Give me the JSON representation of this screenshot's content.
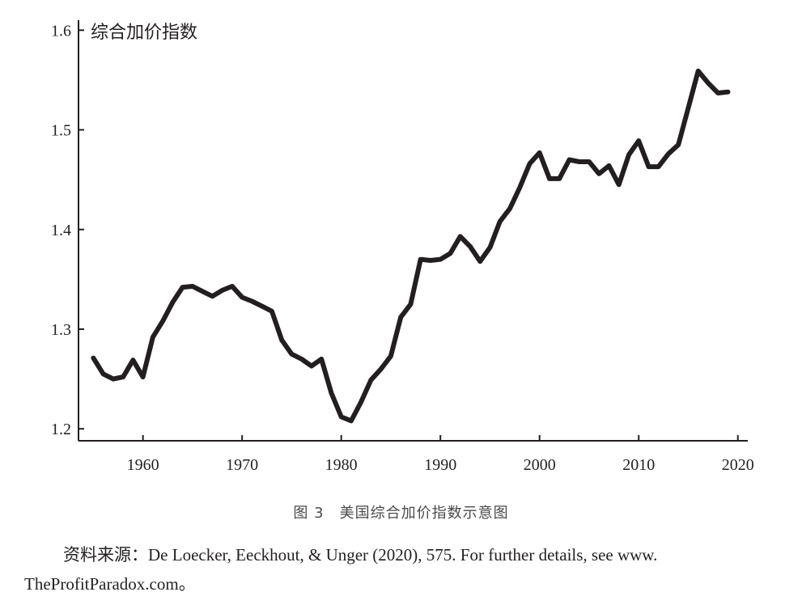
{
  "chart_data": {
    "type": "line",
    "ylabel": "综合加价指数",
    "xlabel": "",
    "xlim": [
      1953.5,
      2021
    ],
    "ylim": [
      1.188,
      1.61
    ],
    "xticks": [
      1960,
      1970,
      1980,
      1990,
      2000,
      2010,
      2020
    ],
    "yticks": [
      1.2,
      1.3,
      1.4,
      1.5,
      1.6
    ],
    "ytick_labels": [
      "1.2",
      "1.3",
      "1.4",
      "1.5",
      "1.6"
    ],
    "grid": false,
    "series": [
      {
        "color": "#231f20",
        "x": [
          1955,
          1956,
          1957,
          1958,
          1959,
          1960,
          1961,
          1962,
          1963,
          1964,
          1965,
          1966,
          1967,
          1968,
          1969,
          1970,
          1971,
          1972,
          1973,
          1974,
          1975,
          1976,
          1977,
          1978,
          1979,
          1980,
          1981,
          1982,
          1983,
          1984,
          1985,
          1986,
          1987,
          1988,
          1989,
          1990,
          1991,
          1992,
          1993,
          1994,
          1995,
          1996,
          1997,
          1998,
          1999,
          2000,
          2001,
          2002,
          2003,
          2004,
          2005,
          2006,
          2007,
          2008,
          2009,
          2010,
          2011,
          2012,
          2013,
          2014,
          2015,
          2016,
          2017,
          2018,
          2019
        ],
        "y": [
          1.271,
          1.255,
          1.25,
          1.252,
          1.269,
          1.252,
          1.292,
          1.308,
          1.327,
          1.342,
          1.343,
          1.338,
          1.333,
          1.339,
          1.343,
          1.332,
          1.328,
          1.323,
          1.318,
          1.289,
          1.275,
          1.27,
          1.263,
          1.27,
          1.236,
          1.212,
          1.208,
          1.227,
          1.249,
          1.26,
          1.273,
          1.312,
          1.325,
          1.37,
          1.369,
          1.37,
          1.376,
          1.393,
          1.383,
          1.368,
          1.382,
          1.408,
          1.421,
          1.442,
          1.466,
          1.477,
          1.451,
          1.451,
          1.47,
          1.468,
          1.468,
          1.456,
          1.464,
          1.445,
          1.475,
          1.489,
          1.463,
          1.463,
          1.476,
          1.485,
          1.522,
          1.559,
          1.547,
          1.537,
          1.538
        ]
      }
    ]
  },
  "caption": "图 3　美国综合加价指数示意图",
  "source_line1": "资料来源：De Loecker, Eeckhout, & Unger (2020), 575. For further details, see www.",
  "source_line2": "TheProfitParadox.com。"
}
